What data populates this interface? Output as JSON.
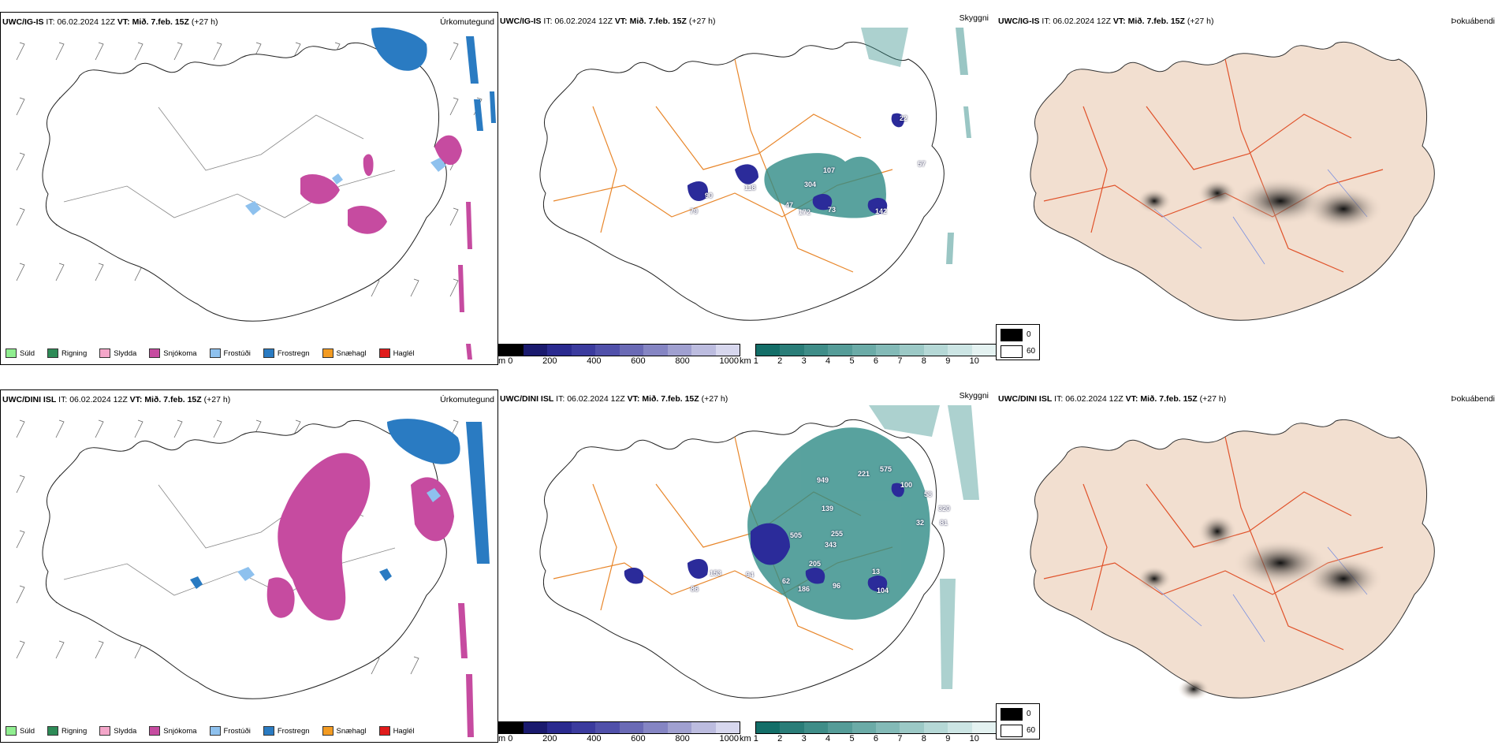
{
  "rows": [
    {
      "model": "UWC/IG-IS",
      "it_label": "IT:",
      "it_value": "06.02.2024 12Z",
      "vt_label": "VT:",
      "vt_value": "Mið. 7.feb. 15Z",
      "lead": "(+27 h)",
      "panels": [
        "Úrkomutegund",
        "Skyggni",
        "Þokuábendi"
      ],
      "visibility_markers": [
        "79",
        "90",
        "118",
        "47",
        "304",
        "107",
        "172",
        "73",
        "142",
        "22",
        "57"
      ]
    },
    {
      "model": "UWC/DINI ISL",
      "it_label": "IT:",
      "it_value": "06.02.2024 12Z",
      "vt_label": "VT:",
      "vt_value": "Mið. 7.feb. 15Z",
      "lead": "(+27 h)",
      "panels": [
        "Úrkomutegund",
        "Skyggni",
        "Þokuábendi"
      ],
      "visibility_markers": [
        "949",
        "221",
        "575",
        "100",
        "139",
        "505",
        "255",
        "343",
        "58",
        "320",
        "32",
        "81",
        "153",
        "86",
        "94",
        "205",
        "62",
        "186",
        "96",
        "13",
        "104"
      ]
    }
  ],
  "precip_legend": [
    {
      "label": "Súld",
      "color": "#90ee90"
    },
    {
      "label": "Rigning",
      "color": "#2e8b57"
    },
    {
      "label": "Slydda",
      "color": "#f4a6c9"
    },
    {
      "label": "Snjókoma",
      "color": "#c64ba0"
    },
    {
      "label": "Frostúði",
      "color": "#8ec1ee"
    },
    {
      "label": "Frostregn",
      "color": "#2a7bc2"
    },
    {
      "label": "Snæhagl",
      "color": "#f39b22"
    },
    {
      "label": "Haglél",
      "color": "#e01b1b"
    }
  ],
  "visibility_scale": {
    "m_unit": "m",
    "m_ticks": [
      "0",
      "200",
      "400",
      "600",
      "800",
      "1000"
    ],
    "km_unit": "km",
    "km_ticks": [
      "1",
      "2",
      "3",
      "4",
      "5",
      "6",
      "7",
      "8",
      "9",
      "10"
    ],
    "m_colors": [
      "#000000",
      "#1a1a6e",
      "#2a2a8f",
      "#3b3b9e",
      "#5050aa",
      "#6a6ab5",
      "#8585c3",
      "#a0a0d0",
      "#bcbcdf",
      "#d7d7ee"
    ],
    "km_colors": [
      "#136e68",
      "#2a7d78",
      "#3f8d88",
      "#559c98",
      "#6babA7",
      "#83bab7",
      "#9cc9c6",
      "#b5d8d6",
      "#cce5e4",
      "#e4f2f1"
    ]
  },
  "fog_legend": {
    "values": [
      "0",
      "60"
    ],
    "colors": [
      "#000000",
      "#ffffff"
    ]
  },
  "colors": {
    "snow": "#c64ba0",
    "freezing_rain": "#2a7bc2",
    "freezing_drizzle": "#8ec1ee",
    "roads": "#e8862a",
    "fog_land": "#f2dfd0",
    "fog_roads": "#e0522a",
    "visibility_teal": "#2f8b86",
    "visibility_blue": "#2b2b9a"
  }
}
